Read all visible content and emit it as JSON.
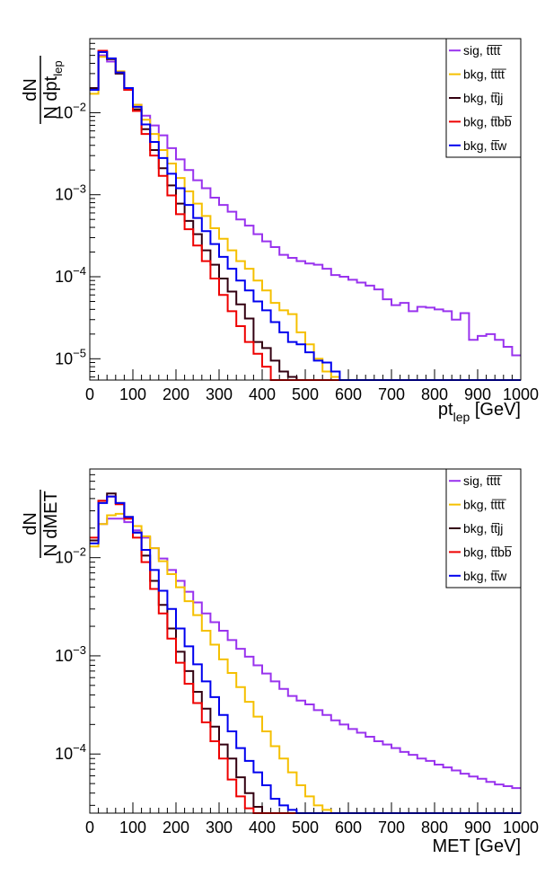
{
  "legend_labels": {
    "sig_tttt": "sig, tt̅tt̅",
    "bkg_tttt": "bkg, tt̅tt̅",
    "bkg_ttjj": "bkg, tt̅jj",
    "bkg_ttbb": "bkg, tt̅bb̅",
    "bkg_ttw": "bkg, tt̅w"
  },
  "colors": {
    "sig_tttt": "#9933ee",
    "bkg_tttt": "#f5c000",
    "bkg_ttjj": "#330011",
    "bkg_ttbb": "#ee0000",
    "bkg_ttw": "#0000ee"
  },
  "chart_data": [
    {
      "type": "line",
      "title": "",
      "xlabel": "pt_lep [GeV]",
      "ylabel": "dN / N dpt_lep",
      "ylabel_num": "dN",
      "ylabel_den": "N dpt",
      "ylabel_den_sub": "lep",
      "xlabel_main": "pt",
      "xlabel_sub": "lep",
      "xlabel_unit": "[GeV]",
      "xlim": [
        0,
        1000
      ],
      "ylim": [
        5.5e-06,
        0.08
      ],
      "yscale": "log",
      "bin_width": 20,
      "xticks": [
        0,
        100,
        200,
        300,
        400,
        500,
        600,
        700,
        800,
        900,
        1000
      ],
      "yticks": [
        {
          "base": "10",
          "exp": "−5",
          "value": 1e-05
        },
        {
          "base": "10",
          "exp": "−4",
          "value": 0.0001
        },
        {
          "base": "10",
          "exp": "−3",
          "value": 0.001
        },
        {
          "base": "10",
          "exp": "−2",
          "value": 0.01
        }
      ],
      "legend_position": "top-right",
      "series": [
        {
          "key": "sig_tttt",
          "values": [
            0.019,
            0.05,
            0.042,
            0.03,
            0.019,
            0.0125,
            0.0092,
            0.007,
            0.0053,
            0.0037,
            0.0027,
            0.002,
            0.0015,
            0.0012,
            0.00092,
            0.00075,
            0.00062,
            0.0005,
            0.00042,
            0.00033,
            0.00027,
            0.00023,
            0.000185,
            0.00017,
            0.000155,
            0.000145,
            0.00014,
            0.000125,
            0.000105,
            0.0001,
            9.2e-05,
            8.5e-05,
            7.8e-05,
            7e-05,
            5.3e-05,
            4.5e-05,
            4.8e-05,
            3.8e-05,
            4.3e-05,
            4.2e-05,
            4e-05,
            3.8e-05,
            3e-05,
            3.6e-05,
            1.7e-05,
            1.9e-05,
            2e-05,
            1.7e-05,
            1.4e-05,
            1.1e-05
          ]
        },
        {
          "key": "bkg_tttt",
          "values": [
            0.017,
            0.048,
            0.045,
            0.032,
            0.02,
            0.0125,
            0.0082,
            0.0055,
            0.0035,
            0.0024,
            0.0016,
            0.0011,
            0.00078,
            0.00055,
            0.00039,
            0.00029,
            0.00021,
            0.000155,
            0.000125,
            9e-05,
            6.8e-05,
            4.8e-05,
            3.9e-05,
            3.5e-05,
            2.1e-05,
            1.5e-05,
            1e-05,
            7e-06,
            6e-06,
            5.5e-06,
            5.5e-06,
            5.5e-06,
            5.5e-06,
            5.5e-06,
            5.5e-06,
            5.5e-06,
            5.5e-06,
            5.5e-06,
            5.5e-06,
            5.5e-06,
            5.5e-06,
            5.5e-06,
            5.5e-06,
            5.5e-06,
            5.5e-06,
            5.5e-06,
            5.5e-06,
            5.5e-06,
            5.5e-06,
            5.5e-06
          ]
        },
        {
          "key": "bkg_ttjj",
          "values": [
            0.02,
            0.055,
            0.045,
            0.03,
            0.019,
            0.011,
            0.0063,
            0.0035,
            0.0021,
            0.0013,
            0.00078,
            0.00048,
            0.00033,
            0.00021,
            0.00014,
            9.5e-05,
            6.6e-05,
            4.6e-05,
            3.1e-05,
            1.6e-05,
            1.35e-05,
            9.5e-06,
            7e-06,
            6e-06,
            5.5e-06,
            5.5e-06,
            5.5e-06,
            5.5e-06,
            5.5e-06,
            5.5e-06,
            5.5e-06,
            5.5e-06,
            5.5e-06,
            5.5e-06,
            5.5e-06,
            5.5e-06,
            5.5e-06,
            5.5e-06,
            5.5e-06,
            5.5e-06,
            5.5e-06,
            5.5e-06,
            5.5e-06,
            5.5e-06,
            5.5e-06,
            5.5e-06,
            5.5e-06,
            5.5e-06,
            5.5e-06,
            5.5e-06
          ]
        },
        {
          "key": "bkg_ttbb",
          "values": [
            0.019,
            0.057,
            0.046,
            0.031,
            0.019,
            0.0105,
            0.0055,
            0.003,
            0.0017,
            0.00098,
            0.00058,
            0.00038,
            0.00024,
            0.000155,
            9.5e-05,
            6e-05,
            3.8e-05,
            2.5e-05,
            1.6e-05,
            1.15e-05,
            8e-06,
            5.5e-06,
            5.5e-06,
            5.5e-06,
            5.5e-06,
            5.5e-06,
            5.5e-06,
            5.5e-06,
            5.5e-06,
            5.5e-06,
            5.5e-06,
            5.5e-06,
            5.5e-06,
            5.5e-06,
            5.5e-06,
            5.5e-06,
            5.5e-06,
            5.5e-06,
            5.5e-06,
            5.5e-06,
            5.5e-06,
            5.5e-06,
            5.5e-06,
            5.5e-06,
            5.5e-06,
            5.5e-06,
            5.5e-06,
            5.5e-06,
            5.5e-06,
            5.5e-06
          ]
        },
        {
          "key": "bkg_ttw",
          "values": [
            0.019,
            0.055,
            0.046,
            0.031,
            0.02,
            0.0118,
            0.0072,
            0.0044,
            0.0028,
            0.0018,
            0.0012,
            0.00075,
            0.00052,
            0.00036,
            0.00025,
            0.000175,
            0.000125,
            9e-05,
            6.8e-05,
            5e-05,
            3.9e-05,
            2.8e-05,
            2.1e-05,
            1.6e-05,
            1.5e-05,
            1.2e-05,
            9.5e-06,
            9e-06,
            7e-06,
            5.5e-06,
            5.5e-06,
            5.5e-06,
            5.5e-06,
            5.5e-06,
            5.5e-06,
            5.5e-06,
            5.5e-06,
            5.5e-06,
            5.5e-06,
            5.5e-06,
            5.5e-06,
            5.5e-06,
            5.5e-06,
            5.5e-06,
            5.5e-06,
            5.5e-06,
            5.5e-06,
            5.5e-06,
            5.5e-06,
            5.5e-06
          ]
        }
      ]
    },
    {
      "type": "line",
      "title": "",
      "xlabel": "MET [GeV]",
      "ylabel": "dN / N dMET",
      "ylabel_num": "dN",
      "ylabel_den": "N dMET",
      "ylabel_den_sub": "",
      "xlabel_main": "MET [GeV]",
      "xlabel_sub": "",
      "xlabel_unit": "",
      "xlim": [
        0,
        1000
      ],
      "ylim": [
        2.5e-05,
        0.08
      ],
      "yscale": "log",
      "bin_width": 20,
      "xticks": [
        0,
        100,
        200,
        300,
        400,
        500,
        600,
        700,
        800,
        900,
        1000
      ],
      "yticks": [
        {
          "base": "10",
          "exp": "−4",
          "value": 0.0001
        },
        {
          "base": "10",
          "exp": "−3",
          "value": 0.001
        },
        {
          "base": "10",
          "exp": "−2",
          "value": 0.01
        }
      ],
      "legend_position": "top-right",
      "series": [
        {
          "key": "sig_tttt",
          "values": [
            0.015,
            0.022,
            0.025,
            0.025,
            0.023,
            0.019,
            0.016,
            0.0125,
            0.0098,
            0.0075,
            0.0058,
            0.0045,
            0.0035,
            0.0027,
            0.0022,
            0.0018,
            0.00145,
            0.00118,
            0.00098,
            0.0008,
            0.00066,
            0.00055,
            0.00046,
            0.00039,
            0.00035,
            0.00032,
            0.00028,
            0.00025,
            0.00022,
            0.0002,
            0.00018,
            0.000165,
            0.00015,
            0.000135,
            0.000125,
            0.000115,
            0.000105,
            9.8e-05,
            9e-05,
            8.5e-05,
            7.8e-05,
            7.3e-05,
            6.8e-05,
            6.3e-05,
            5.9e-05,
            5.6e-05,
            5.2e-05,
            4.9e-05,
            4.7e-05,
            4.5e-05
          ]
        },
        {
          "key": "bkg_tttt",
          "values": [
            0.013,
            0.022,
            0.027,
            0.028,
            0.025,
            0.021,
            0.0165,
            0.0125,
            0.0092,
            0.0068,
            0.005,
            0.0036,
            0.0026,
            0.0018,
            0.0013,
            0.00092,
            0.00067,
            0.00048,
            0.00034,
            0.00024,
            0.00017,
            0.00012,
            9e-05,
            6.5e-05,
            4.8e-05,
            3.7e-05,
            3e-05,
            2.7e-05,
            2.5e-05,
            2.5e-05,
            2.5e-05,
            2.5e-05,
            2.5e-05,
            2.5e-05,
            2.5e-05,
            2.5e-05,
            2.5e-05,
            2.5e-05,
            2.5e-05,
            2.5e-05,
            2.5e-05,
            2.5e-05,
            2.5e-05,
            2.5e-05,
            2.5e-05,
            2.5e-05,
            2.5e-05,
            2.5e-05,
            2.5e-05,
            2.5e-05
          ]
        },
        {
          "key": "bkg_ttjj",
          "values": [
            0.015,
            0.038,
            0.045,
            0.036,
            0.026,
            0.018,
            0.0105,
            0.0058,
            0.0033,
            0.0019,
            0.0011,
            0.0007,
            0.00043,
            0.00029,
            0.00019,
            0.000125,
            9e-05,
            5.8e-05,
            4e-05,
            2.9e-05,
            2.5e-05,
            2.5e-05,
            2.5e-05,
            2.5e-05,
            2.5e-05,
            2.5e-05,
            2.5e-05,
            2.5e-05,
            2.5e-05,
            2.5e-05,
            2.5e-05,
            2.5e-05,
            2.5e-05,
            2.5e-05,
            2.5e-05,
            2.5e-05,
            2.5e-05,
            2.5e-05,
            2.5e-05,
            2.5e-05,
            2.5e-05,
            2.5e-05,
            2.5e-05,
            2.5e-05,
            2.5e-05,
            2.5e-05,
            2.5e-05,
            2.5e-05,
            2.5e-05,
            2.5e-05
          ]
        },
        {
          "key": "bkg_ttbb",
          "values": [
            0.016,
            0.038,
            0.042,
            0.035,
            0.025,
            0.016,
            0.009,
            0.0048,
            0.0027,
            0.0015,
            0.00085,
            0.00052,
            0.00033,
            0.00021,
            0.000135,
            9e-05,
            5.5e-05,
            3.7e-05,
            2.8e-05,
            2.5e-05,
            2.5e-05,
            2.5e-05,
            2.5e-05,
            2.5e-05,
            2.5e-05,
            2.5e-05,
            2.5e-05,
            2.5e-05,
            2.5e-05,
            2.5e-05,
            2.5e-05,
            2.5e-05,
            2.5e-05,
            2.5e-05,
            2.5e-05,
            2.5e-05,
            2.5e-05,
            2.5e-05,
            2.5e-05,
            2.5e-05,
            2.5e-05,
            2.5e-05,
            2.5e-05,
            2.5e-05,
            2.5e-05,
            2.5e-05,
            2.5e-05,
            2.5e-05,
            2.5e-05,
            2.5e-05
          ]
        },
        {
          "key": "bkg_ttw",
          "values": [
            0.014,
            0.036,
            0.042,
            0.036,
            0.026,
            0.018,
            0.012,
            0.0075,
            0.0046,
            0.003,
            0.0019,
            0.00125,
            0.00082,
            0.00055,
            0.00038,
            0.00025,
            0.00017,
            0.000115,
            8.5e-05,
            6.5e-05,
            4.8e-05,
            3.5e-05,
            3e-05,
            2.7e-05,
            2.5e-05,
            2.5e-05,
            2.5e-05,
            2.5e-05,
            2.5e-05,
            2.5e-05,
            2.5e-05,
            2.5e-05,
            2.5e-05,
            2.5e-05,
            2.5e-05,
            2.5e-05,
            2.5e-05,
            2.5e-05,
            2.5e-05,
            2.5e-05,
            2.5e-05,
            2.5e-05,
            2.5e-05,
            2.5e-05,
            2.5e-05,
            2.5e-05,
            2.5e-05,
            2.5e-05,
            2.5e-05,
            2.5e-05
          ]
        }
      ]
    }
  ]
}
